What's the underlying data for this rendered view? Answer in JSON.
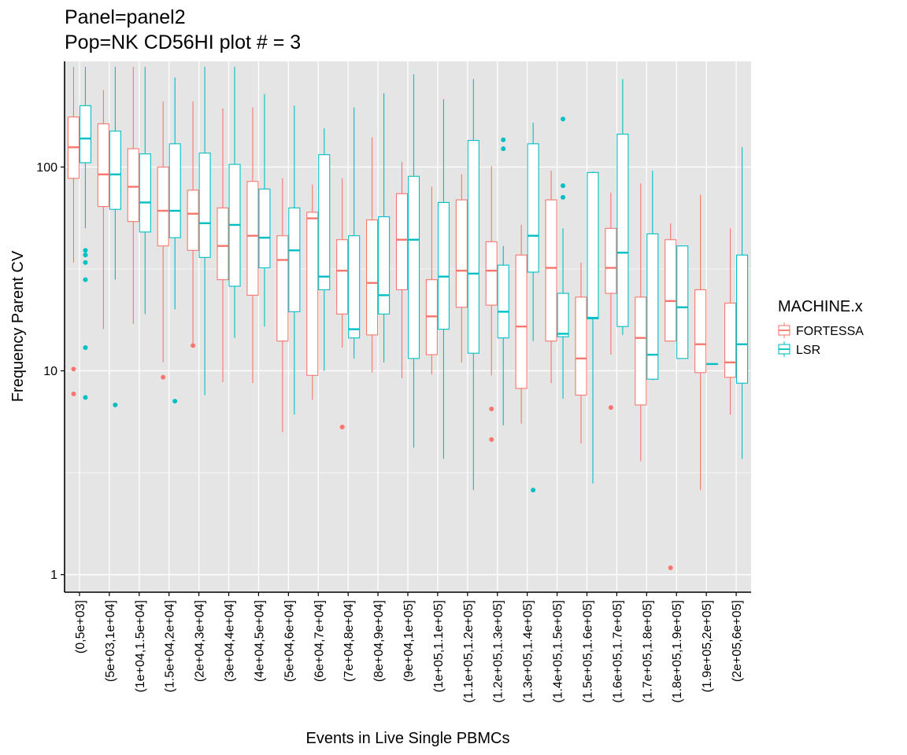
{
  "chart_data": {
    "type": "boxplot",
    "title": "Panel=panel2",
    "subtitle": "Pop=NK CD56HI plot # = 3",
    "xlabel": "Events in Live Single PBMCs",
    "ylabel": "Frequency Parent CV",
    "y_scale": "log10",
    "ylim": [
      0.82,
      330
    ],
    "y_ticks": [
      1,
      10,
      100
    ],
    "y_tick_labels": [
      "1",
      "10",
      "100"
    ],
    "grid": true,
    "legend": {
      "title": "MACHINE.x",
      "placement": "right",
      "entries": [
        "FORTESSA",
        "LSR"
      ]
    },
    "colors": {
      "FORTESSA": "#F8766D",
      "LSR": "#00BFC4",
      "panel_bg": "#E5E5E5",
      "grid": "#FFFFFF"
    },
    "categories": [
      "(0,5e+03]",
      "(5e+03,1e+04]",
      "(1e+04,1.5e+04]",
      "(1.5e+04,2e+04]",
      "(2e+04,3e+04]",
      "(3e+04,4e+04]",
      "(4e+04,5e+04]",
      "(5e+04,6e+04]",
      "(6e+04,7e+04]",
      "(7e+04,8e+04]",
      "(8e+04,9e+04]",
      "(9e+04,1e+05]",
      "(1e+05,1.1e+05]",
      "(1.1e+05,1.2e+05]",
      "(1.2e+05,1.3e+05]",
      "(1.3e+05,1.4e+05]",
      "(1.4e+05,1.5e+05]",
      "(1.5e+05,1.6e+05]",
      "(1.6e+05,1.7e+05]",
      "(1.7e+05,1.8e+05]",
      "(1.8e+05,1.9e+05]",
      "(1.9e+05,2e+05]",
      "(2e+05,6e+05]"
    ],
    "series": [
      {
        "name": "FORTESSA",
        "boxes": [
          {
            "lw": 34,
            "q1": 88,
            "med": 125,
            "q3": 176,
            "uw": 310,
            "out": [
              10.2,
              7.7
            ]
          },
          {
            "lw": 16,
            "q1": 64,
            "med": 92,
            "q3": 163,
            "uw": 238,
            "out": []
          },
          {
            "lw": 17,
            "q1": 54,
            "med": 80,
            "q3": 123,
            "uw": 310,
            "out": []
          },
          {
            "lw": 11,
            "q1": 41,
            "med": 61,
            "q3": 100,
            "uw": 210,
            "out": [
              9.3
            ]
          },
          {
            "lw": 13.5,
            "q1": 39,
            "med": 59,
            "q3": 77,
            "uw": 210,
            "out": [
              13.3
            ]
          },
          {
            "lw": 8.8,
            "q1": 28,
            "med": 41,
            "q3": 63,
            "uw": 194,
            "out": []
          },
          {
            "lw": 8.7,
            "q1": 23.5,
            "med": 46,
            "q3": 85,
            "uw": 196,
            "out": []
          },
          {
            "lw": 5,
            "q1": 14,
            "med": 35,
            "q3": 46,
            "uw": 88,
            "out": []
          },
          {
            "lw": 7.2,
            "q1": 9.5,
            "med": 56,
            "q3": 60,
            "uw": 82,
            "out": []
          },
          {
            "lw": 13,
            "q1": 19,
            "med": 31,
            "q3": 44,
            "uw": 88,
            "out": [
              5.3
            ]
          },
          {
            "lw": 9.8,
            "q1": 15,
            "med": 27,
            "q3": 55,
            "uw": 140,
            "out": []
          },
          {
            "lw": 9.2,
            "q1": 25,
            "med": 44,
            "q3": 74,
            "uw": 106,
            "out": []
          },
          {
            "lw": 9.6,
            "q1": 12,
            "med": 18.5,
            "q3": 28,
            "uw": 80,
            "out": []
          },
          {
            "lw": 11,
            "q1": 20.5,
            "med": 31,
            "q3": 69,
            "uw": 92,
            "out": []
          },
          {
            "lw": 9.5,
            "q1": 21,
            "med": 31,
            "q3": 43,
            "uw": 101,
            "out": [
              6.5,
              4.6
            ]
          },
          {
            "lw": 5.5,
            "q1": 8.2,
            "med": 16.5,
            "q3": 37,
            "uw": 52,
            "out": []
          },
          {
            "lw": 8.7,
            "q1": 14,
            "med": 32,
            "q3": 69,
            "uw": 96,
            "out": []
          },
          {
            "lw": 4.4,
            "q1": 7.6,
            "med": 11.5,
            "q3": 23,
            "uw": 34,
            "out": []
          },
          {
            "lw": 12,
            "q1": 24,
            "med": 32,
            "q3": 50,
            "uw": 75,
            "out": [
              6.6
            ]
          },
          {
            "lw": 3.6,
            "q1": 6.8,
            "med": 14.5,
            "q3": 23,
            "uw": 83,
            "out": []
          },
          {
            "lw": 14,
            "q1": 14,
            "med": 22,
            "q3": 44,
            "uw": 53,
            "out": [
              1.08
            ]
          },
          {
            "lw": 2.6,
            "q1": 9.8,
            "med": 13.5,
            "q3": 25,
            "uw": 73,
            "out": []
          },
          {
            "lw": 6.1,
            "q1": 9.3,
            "med": 11,
            "q3": 21.5,
            "uw": 50,
            "out": []
          }
        ]
      },
      {
        "name": "LSR",
        "boxes": [
          {
            "lw": 50,
            "q1": 105,
            "med": 138,
            "q3": 200,
            "uw": 310,
            "out": [
              39,
              37,
              34,
              28,
              13,
              7.4
            ]
          },
          {
            "lw": 28,
            "q1": 62,
            "med": 92,
            "q3": 150,
            "uw": 310,
            "out": [
              6.8
            ]
          },
          {
            "lw": 19,
            "q1": 48,
            "med": 67,
            "q3": 116,
            "uw": 310,
            "out": []
          },
          {
            "lw": 20,
            "q1": 45,
            "med": 61,
            "q3": 130,
            "uw": 275,
            "out": [
              7.1
            ]
          },
          {
            "lw": 7.6,
            "q1": 36,
            "med": 53,
            "q3": 117,
            "uw": 310,
            "out": []
          },
          {
            "lw": 14.5,
            "q1": 26,
            "med": 52,
            "q3": 103,
            "uw": 310,
            "out": []
          },
          {
            "lw": 16.5,
            "q1": 32,
            "med": 45,
            "q3": 78,
            "uw": 228,
            "out": []
          },
          {
            "lw": 6.1,
            "q1": 19.5,
            "med": 39,
            "q3": 63,
            "uw": 200,
            "out": []
          },
          {
            "lw": 10,
            "q1": 25,
            "med": 29,
            "q3": 115,
            "uw": 155,
            "out": []
          },
          {
            "lw": 11.5,
            "q1": 14.5,
            "med": 16,
            "q3": 46,
            "uw": 196,
            "out": []
          },
          {
            "lw": 11,
            "q1": 19,
            "med": 23.5,
            "q3": 57,
            "uw": 230,
            "out": []
          },
          {
            "lw": 4.2,
            "q1": 11.5,
            "med": 44,
            "q3": 90,
            "uw": 285,
            "out": []
          },
          {
            "lw": 3.7,
            "q1": 16,
            "med": 29,
            "q3": 67,
            "uw": 215,
            "out": []
          },
          {
            "lw": 2.6,
            "q1": 12.2,
            "med": 30,
            "q3": 135,
            "uw": 270,
            "out": []
          },
          {
            "lw": 5.4,
            "q1": 14.5,
            "med": 19.5,
            "q3": 33,
            "uw": 41,
            "out": [
              136,
              123
            ]
          },
          {
            "lw": 14,
            "q1": 30.5,
            "med": 46,
            "q3": 130,
            "uw": 165,
            "out": [
              2.6
            ]
          },
          {
            "lw": 7.3,
            "q1": 14.7,
            "med": 15.2,
            "q3": 24,
            "uw": 50,
            "out": [
              172,
              81,
              71
            ]
          },
          {
            "lw": 2.8,
            "q1": 18,
            "med": 18.2,
            "q3": 94,
            "uw": 95,
            "out": []
          },
          {
            "lw": 15,
            "q1": 16.5,
            "med": 38,
            "q3": 145,
            "uw": 270,
            "out": []
          },
          {
            "lw": 9,
            "q1": 9.1,
            "med": 12,
            "q3": 47,
            "uw": 96,
            "out": []
          },
          {
            "lw": 11.5,
            "q1": 11.5,
            "med": 20.5,
            "q3": 41,
            "uw": 41,
            "out": []
          },
          {
            "lw": 10.8,
            "q1": 10.8,
            "med": 10.8,
            "q3": 10.8,
            "uw": 10.8,
            "out": []
          },
          {
            "lw": 3.7,
            "q1": 8.7,
            "med": 13.5,
            "q3": 37,
            "uw": 125,
            "out": []
          }
        ]
      }
    ]
  }
}
